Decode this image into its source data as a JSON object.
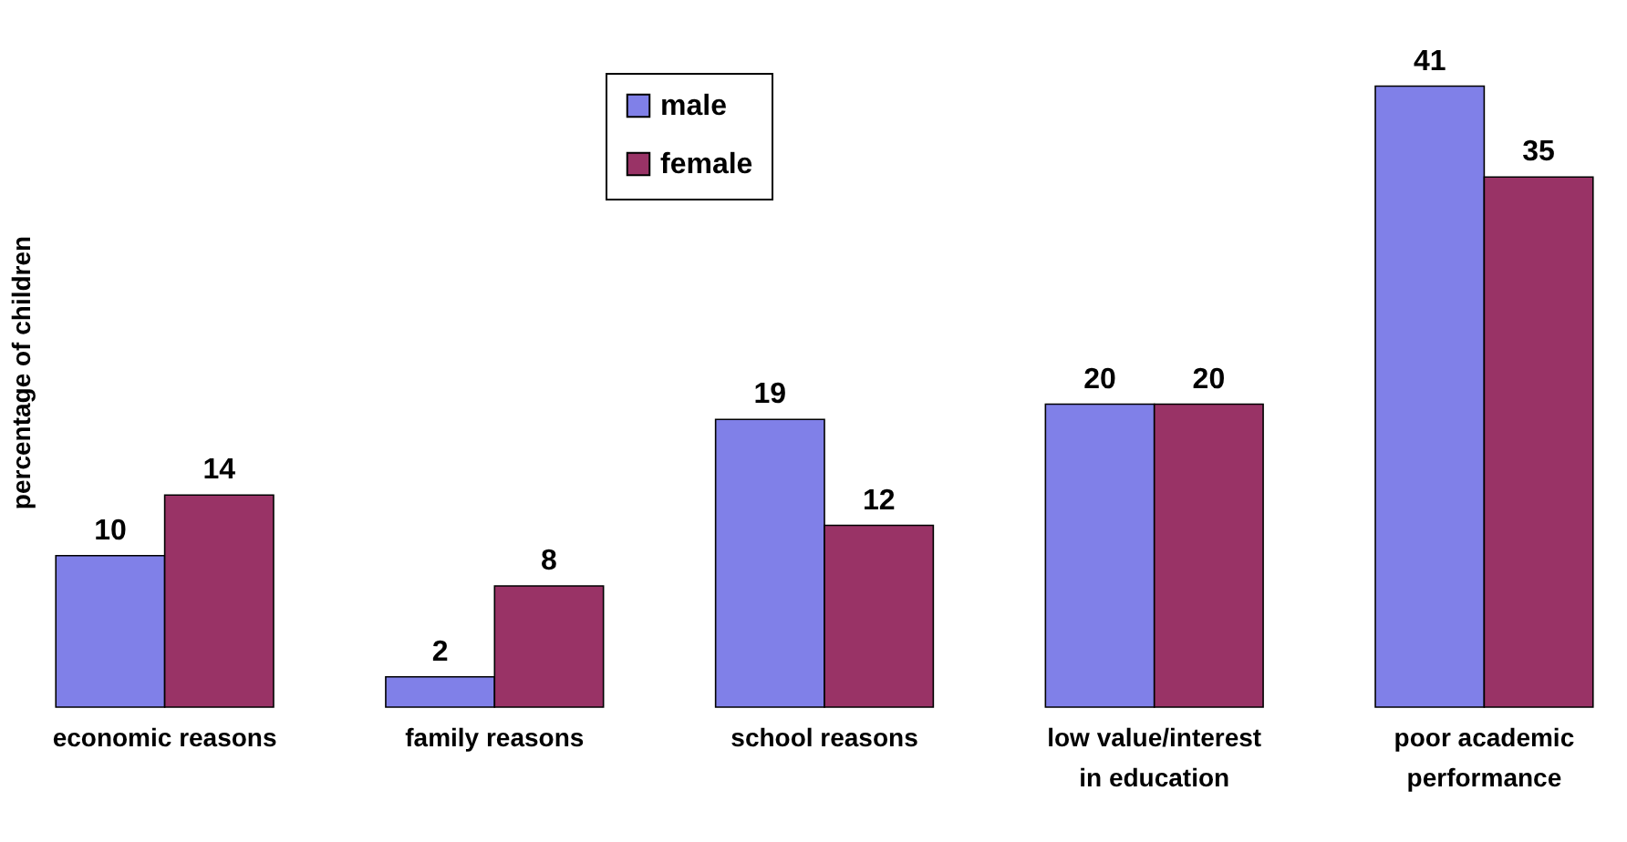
{
  "chart_data": {
    "type": "bar",
    "ylabel": "percentage of children",
    "categories": [
      "economic reasons",
      "family reasons",
      "school reasons",
      "low value/interest in education",
      "poor academic performance"
    ],
    "series": [
      {
        "name": "male",
        "color": "#8080e8",
        "values": [
          10,
          2,
          19,
          20,
          41
        ]
      },
      {
        "name": "female",
        "color": "#993366",
        "values": [
          14,
          8,
          12,
          20,
          35
        ]
      }
    ],
    "data_labels": true,
    "legend": "top",
    "grid": false
  }
}
